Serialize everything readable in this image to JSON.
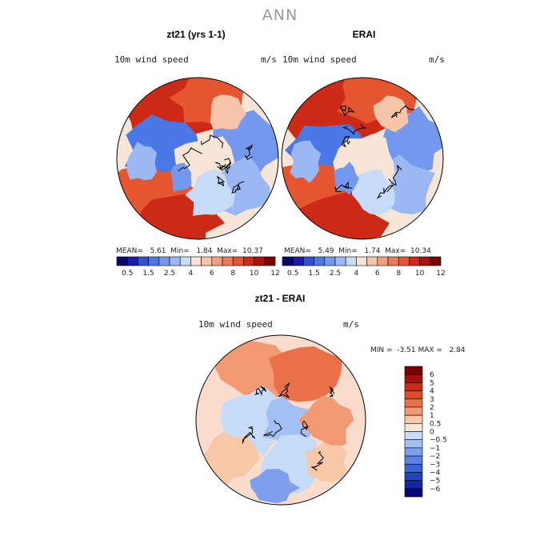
{
  "page": {
    "title": "ANN"
  },
  "chart_data": [
    {
      "type": "heatmap",
      "projection": "north-polar-stereographic",
      "title": "zt21 (yrs 1-1)",
      "field_label": "10m wind speed",
      "units": "m/s",
      "stats": {
        "mean_label": "MEAN=",
        "mean": "5.61",
        "min_label": "Min=",
        "min": "1.84",
        "max_label": "Max=",
        "max": "10.37"
      },
      "colorbar_levels": [
        "0.5",
        "1.5",
        "2.5",
        "4",
        "6",
        "8",
        "10",
        "12"
      ]
    },
    {
      "type": "heatmap",
      "projection": "north-polar-stereographic",
      "title": "ERAI",
      "field_label": "10m wind speed",
      "units": "m/s",
      "stats": {
        "mean_label": "MEAN=",
        "mean": "5.49",
        "min_label": "Min=",
        "min": "1.74",
        "max_label": "Max=",
        "max": "10.34"
      },
      "colorbar_levels": [
        "0.5",
        "1.5",
        "2.5",
        "4",
        "6",
        "8",
        "10",
        "12"
      ]
    },
    {
      "type": "heatmap",
      "projection": "north-polar-stereographic",
      "title": "zt21 - ERAI",
      "field_label": "10m wind speed",
      "units": "m/s",
      "stats": {
        "min_label": "MIN =",
        "min": "-3.51",
        "max_label": "MAX =",
        "max": "2.84"
      },
      "colorbar_levels": [
        "6",
        "5",
        "4",
        "3",
        "2",
        "1",
        "0.5",
        "0",
        "−0.5",
        "−1",
        "−2",
        "−3",
        "−4",
        "−5",
        "−6"
      ]
    }
  ],
  "colors": {
    "abs_scale": [
      "#06066f",
      "#1a1aa8",
      "#2f52d0",
      "#4a78e6",
      "#7399ee",
      "#9ab8f4",
      "#c7dcf9",
      "#f7e6d8",
      "#f6c4a8",
      "#f2a07c",
      "#ec7a54",
      "#e45530",
      "#cc2a16",
      "#aa1208",
      "#7a0000"
    ],
    "diff_scale": [
      "#7a0000",
      "#a80e06",
      "#cc2a16",
      "#e04a28",
      "#ea7048",
      "#f39a72",
      "#f8c7a8",
      "#f7e6d8",
      "#c7dcf9",
      "#a3c0f4",
      "#7e9eee",
      "#5b82e6",
      "#3a62d8",
      "#2043bf",
      "#1128a0",
      "#050878"
    ]
  }
}
